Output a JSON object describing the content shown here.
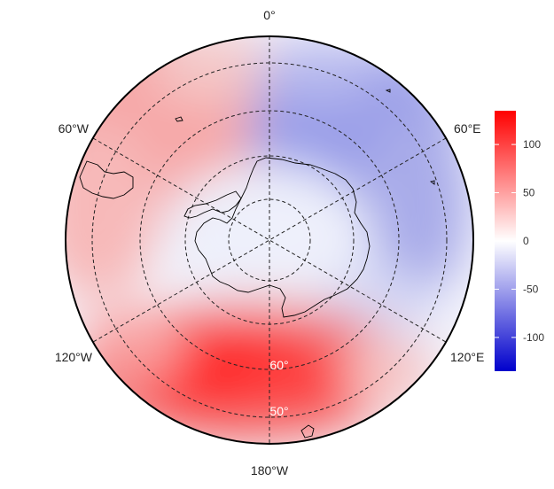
{
  "map": {
    "projection": "south polar stereographic",
    "variable_units": "",
    "longitude_labels": {
      "top": "0°",
      "upper_right": "60°E",
      "lower_right": "120°E",
      "bottom": "180°W",
      "lower_left": "120°W",
      "upper_left": "60°W"
    },
    "latitude_labels": [
      "60°",
      "50°"
    ]
  },
  "colorbar": {
    "ticks": [
      "100",
      "50",
      "0",
      "-50",
      "-100"
    ],
    "tick_values": [
      100,
      50,
      0,
      -50,
      -100
    ],
    "range": [
      -135,
      135
    ],
    "colors": {
      "min": "#0000cc",
      "mid": "#ffffff",
      "max": "#ff0000"
    }
  },
  "field_features": [
    {
      "name": "strong positive anomaly",
      "region": "Amundsen–Ross Sea sector",
      "value": 130
    },
    {
      "name": "positive anomaly",
      "region": "Drake Passage / Weddell sector",
      "value": 60
    },
    {
      "name": "negative anomaly",
      "region": "Indian Ocean sector",
      "value": -65
    },
    {
      "name": "near-neutral",
      "region": "East Antarctica",
      "value": -10
    }
  ]
}
